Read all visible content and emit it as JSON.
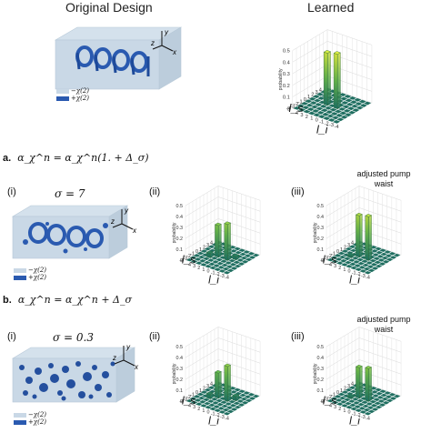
{
  "header": {
    "left": "Original Design",
    "right": "Learned"
  },
  "sections": [
    {
      "letter": "a.",
      "equation": "α_χ^n = α_χ^n(1. + Δ_σ)",
      "sigma": "σ = 7",
      "note": "adjusted pump waist"
    },
    {
      "letter": "b.",
      "equation": "α_χ^n = α_χ^n + Δ_σ",
      "sigma": "σ = 0.3",
      "note": "adjusted pump waist"
    }
  ],
  "panel_labels": [
    "(i)",
    "(ii)",
    "(iii)"
  ],
  "legend": {
    "neg": "−χ(2)",
    "pos": "+χ(2)"
  },
  "axes": {
    "x": "x",
    "y": "y",
    "z": "z",
    "ls": "l_s",
    "li": "l_i",
    "zlabel": "probability"
  },
  "chart_data": [
    {
      "type": "bar3d",
      "panel": "top-learned",
      "ls_ticks": [
        "4",
        "3",
        "2",
        "1",
        "0",
        "-1",
        "-2",
        "-3",
        "-4"
      ],
      "li_ticks": [
        "4",
        "3",
        "2",
        "1",
        "0",
        "-1",
        "-2",
        "-3",
        "-4"
      ],
      "zlim": [
        0,
        0.5
      ],
      "zticks": [
        "0",
        "0.1",
        "0.2",
        "0.3",
        "0.4",
        "0.5"
      ],
      "bars": [
        {
          "ls": 0,
          "li": 1,
          "p": 0.45
        },
        {
          "ls": 0,
          "li": -1,
          "p": 0.47
        }
      ]
    },
    {
      "type": "bar3d",
      "panel": "a-ii",
      "ls_ticks": [
        "4",
        "3",
        "2",
        "1",
        "0",
        "-1",
        "-2",
        "-3",
        "-4"
      ],
      "li_ticks": [
        "4",
        "3",
        "2",
        "1",
        "0",
        "-1",
        "-2",
        "-3",
        "-4"
      ],
      "zlim": [
        0,
        0.5
      ],
      "zticks": [
        "0",
        "0.1",
        "0.2",
        "0.3",
        "0.4",
        "0.5"
      ],
      "bars": [
        {
          "ls": 0,
          "li": 1,
          "p": 0.29
        },
        {
          "ls": 0,
          "li": -1,
          "p": 0.33
        },
        {
          "ls": -1,
          "li": 2,
          "p": 0.04
        },
        {
          "ls": 1,
          "li": -2,
          "p": 0.03
        }
      ]
    },
    {
      "type": "bar3d",
      "panel": "a-iii",
      "ls_ticks": [
        "4",
        "3",
        "2",
        "1",
        "0",
        "-1",
        "-2",
        "-3",
        "-4"
      ],
      "li_ticks": [
        "4",
        "3",
        "2",
        "1",
        "0",
        "-1",
        "-2",
        "-3",
        "-4"
      ],
      "zlim": [
        0,
        0.5
      ],
      "zticks": [
        "0",
        "0.1",
        "0.2",
        "0.3",
        "0.4",
        "0.5"
      ],
      "bars": [
        {
          "ls": 0,
          "li": 1,
          "p": 0.38
        },
        {
          "ls": 0,
          "li": -1,
          "p": 0.4
        },
        {
          "ls": -1,
          "li": 2,
          "p": 0.02
        }
      ]
    },
    {
      "type": "bar3d",
      "panel": "b-ii",
      "ls_ticks": [
        "4",
        "3",
        "2",
        "1",
        "0",
        "-1",
        "-2",
        "-3",
        "-4"
      ],
      "li_ticks": [
        "4",
        "3",
        "2",
        "1",
        "0",
        "-1",
        "-2",
        "-3",
        "-4"
      ],
      "zlim": [
        0,
        0.5
      ],
      "zticks": [
        "0",
        "0.1",
        "0.2",
        "0.3",
        "0.4",
        "0.5"
      ],
      "bars": [
        {
          "ls": 0,
          "li": 1,
          "p": 0.23
        },
        {
          "ls": 0,
          "li": -1,
          "p": 0.32
        },
        {
          "ls": -1,
          "li": 2,
          "p": 0.04
        },
        {
          "ls": 1,
          "li": -2,
          "p": 0.04
        }
      ]
    },
    {
      "type": "bar3d",
      "panel": "b-iii",
      "ls_ticks": [
        "4",
        "3",
        "2",
        "1",
        "0",
        "-1",
        "-2",
        "-3",
        "-4"
      ],
      "li_ticks": [
        "4",
        "3",
        "2",
        "1",
        "0",
        "-1",
        "-2",
        "-3",
        "-4"
      ],
      "zlim": [
        0,
        0.5
      ],
      "zticks": [
        "0",
        "0.1",
        "0.2",
        "0.3",
        "0.4",
        "0.5"
      ],
      "bars": [
        {
          "ls": 0,
          "li": 1,
          "p": 0.28
        },
        {
          "ls": 0,
          "li": -1,
          "p": 0.3
        },
        {
          "ls": -1,
          "li": 2,
          "p": 0.02
        }
      ]
    }
  ]
}
